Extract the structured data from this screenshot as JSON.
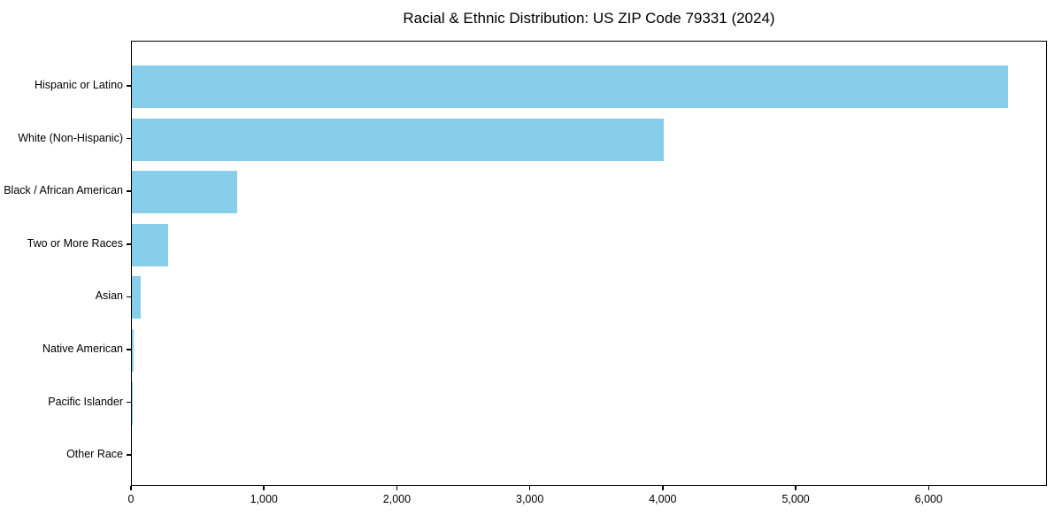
{
  "title": "Racial & Ethnic Distribution: US ZIP Code 79331 (2024)",
  "chart_data": {
    "type": "bar",
    "orientation": "horizontal",
    "title": "Racial & Ethnic Distribution: US ZIP Code 79331 (2024)",
    "xlabel": "",
    "ylabel": "",
    "categories": [
      "Hispanic or Latino",
      "White (Non-Hispanic)",
      "Black / African American",
      "Two or More Races",
      "Asian",
      "Native American",
      "Pacific Islander",
      "Other Race"
    ],
    "values": [
      6590,
      4000,
      790,
      270,
      65,
      10,
      2,
      0
    ],
    "xlim": [
      0,
      6890
    ],
    "x_ticks": [
      0,
      1000,
      2000,
      3000,
      4000,
      5000,
      6000
    ],
    "x_tick_labels": [
      "0",
      "1,000",
      "2,000",
      "3,000",
      "4,000",
      "5,000",
      "6,000"
    ],
    "bar_color": "#87CEEB",
    "grid": false,
    "legend": false
  },
  "colors": {
    "bar": "#87CEEB",
    "text": "#000000",
    "spine": "#000000",
    "background": "#ffffff"
  }
}
